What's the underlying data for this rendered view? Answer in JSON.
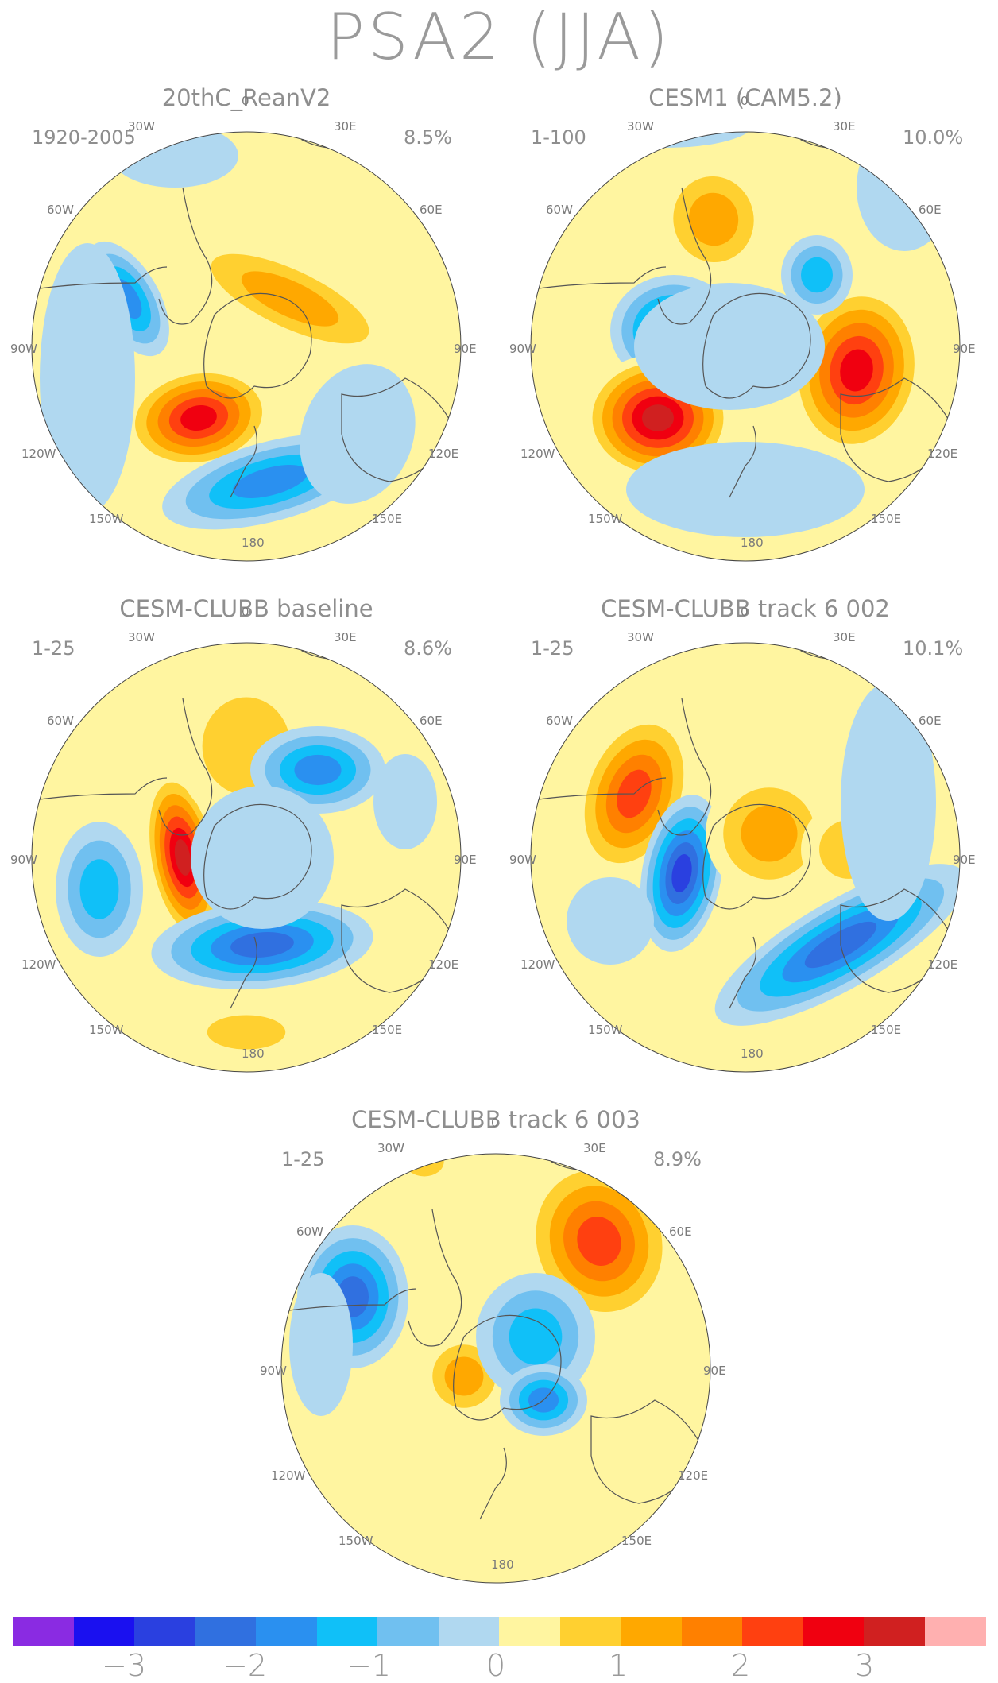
{
  "title": "PSA2 (JJA)",
  "panels": [
    {
      "title": "20thC_ReanV2",
      "years": "1920-2005",
      "percent": "8.5%"
    },
    {
      "title": "CESM1 (CAM5.2)",
      "years": "1-100",
      "percent": "10.0%"
    },
    {
      "title": "CESM-CLUBB baseline",
      "years": "1-25",
      "percent": "8.6%"
    },
    {
      "title": "CESM-CLUBB track 6 002",
      "years": "1-25",
      "percent": "10.1%"
    },
    {
      "title": "CESM-CLUBB track 6 003",
      "years": "1-25",
      "percent": "8.9%"
    }
  ],
  "lon_labels": [
    "0",
    "30E",
    "60E",
    "90E",
    "120E",
    "150E",
    "180",
    "150W",
    "120W",
    "90W",
    "60W",
    "30W"
  ],
  "colorbar": {
    "colors": [
      "#8a2be2",
      "#1a10f0",
      "#2a40e0",
      "#3070e0",
      "#2a90f0",
      "#10c0f8",
      "#70c0f0",
      "#b0d8f0",
      "#fff5a0",
      "#ffd030",
      "#ffa800",
      "#ff8000",
      "#ff4010",
      "#f00010",
      "#d02020",
      "#ffb0b0"
    ],
    "tick_labels": [
      "−3",
      "−2",
      "−1",
      "0",
      "1",
      "2",
      "3"
    ]
  },
  "colors": {
    "map_background": "#fff5a0",
    "coast": "#555555",
    "text": "#8e8e8e"
  }
}
